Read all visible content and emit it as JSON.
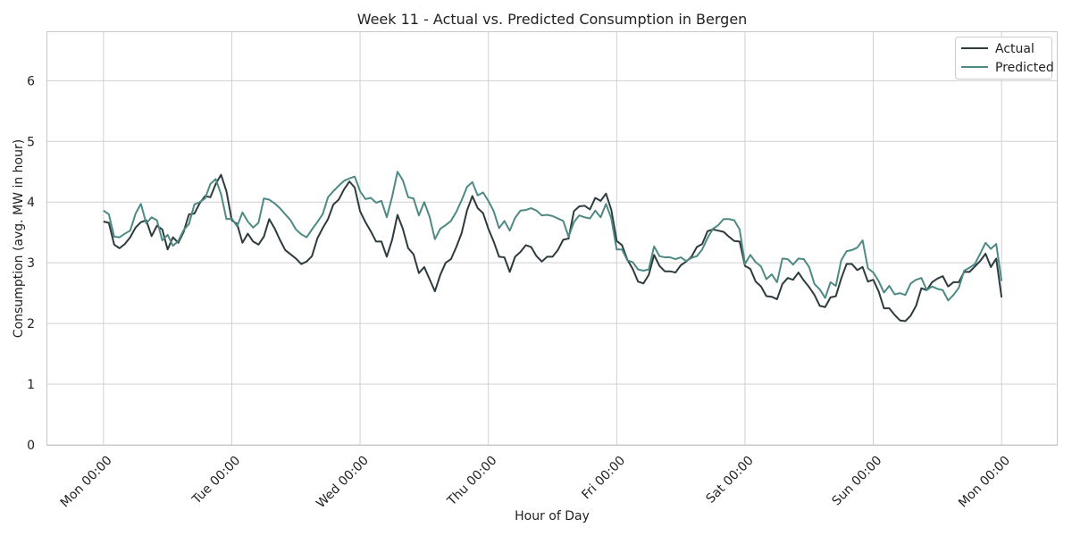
{
  "chart_data": {
    "type": "line",
    "title": "Week 11 - Actual vs. Predicted Consumption in Bergen",
    "xlabel": "Hour of Day",
    "ylabel": "Consumption (avg. MW in hour)",
    "x_unit": "hour",
    "xlim": [
      -10.5,
      178.5
    ],
    "ylim": [
      0,
      6.8
    ],
    "x_ticks": [
      {
        "value": 0,
        "label": "Mon 00:00"
      },
      {
        "value": 24,
        "label": "Tue 00:00"
      },
      {
        "value": 48,
        "label": "Wed 00:00"
      },
      {
        "value": 72,
        "label": "Thu 00:00"
      },
      {
        "value": 96,
        "label": "Fri 00:00"
      },
      {
        "value": 120,
        "label": "Sat 00:00"
      },
      {
        "value": 144,
        "label": "Sun 00:00"
      },
      {
        "value": 168,
        "label": "Mon 00:00"
      }
    ],
    "y_ticks": [
      0,
      1,
      2,
      3,
      4,
      5,
      6
    ],
    "grid": true,
    "legend_position": "top-right",
    "series": [
      {
        "name": "Actual",
        "color": "#2e3b3e",
        "values": [
          3.68,
          3.66,
          3.3,
          3.24,
          3.31,
          3.42,
          3.58,
          3.67,
          3.7,
          3.44,
          3.61,
          3.55,
          3.22,
          3.42,
          3.33,
          3.51,
          3.8,
          3.81,
          3.98,
          4.1,
          4.08,
          4.3,
          4.45,
          4.18,
          3.7,
          3.64,
          3.33,
          3.48,
          3.35,
          3.3,
          3.43,
          3.72,
          3.57,
          3.38,
          3.21,
          3.14,
          3.07,
          2.98,
          3.02,
          3.11,
          3.4,
          3.57,
          3.72,
          3.96,
          4.04,
          4.21,
          4.34,
          4.24,
          3.85,
          3.67,
          3.52,
          3.35,
          3.35,
          3.1,
          3.38,
          3.79,
          3.56,
          3.24,
          3.14,
          2.83,
          2.93,
          2.73,
          2.53,
          2.8,
          3.0,
          3.06,
          3.26,
          3.49,
          3.86,
          4.1,
          3.9,
          3.82,
          3.56,
          3.35,
          3.1,
          3.09,
          2.85,
          3.1,
          3.18,
          3.29,
          3.26,
          3.11,
          3.02,
          3.1,
          3.1,
          3.21,
          3.38,
          3.4,
          3.85,
          3.93,
          3.94,
          3.88,
          4.07,
          4.02,
          4.14,
          3.87,
          3.36,
          3.29,
          3.05,
          2.9,
          2.69,
          2.66,
          2.8,
          3.13,
          2.95,
          2.86,
          2.86,
          2.84,
          2.96,
          3.02,
          3.1,
          3.26,
          3.31,
          3.52,
          3.55,
          3.53,
          3.51,
          3.43,
          3.36,
          3.35,
          2.95,
          2.9,
          2.69,
          2.61,
          2.45,
          2.44,
          2.4,
          2.65,
          2.75,
          2.72,
          2.84,
          2.71,
          2.6,
          2.47,
          2.29,
          2.27,
          2.43,
          2.45,
          2.74,
          2.98,
          2.98,
          2.88,
          2.93,
          2.69,
          2.72,
          2.53,
          2.25,
          2.25,
          2.14,
          2.05,
          2.04,
          2.13,
          2.29,
          2.58,
          2.55,
          2.68,
          2.74,
          2.78,
          2.61,
          2.68,
          2.68,
          2.85,
          2.85,
          2.94,
          3.03,
          3.15,
          2.93,
          3.07,
          2.43
        ]
      },
      {
        "name": "Predicted",
        "color": "#4e8a84",
        "values": [
          3.86,
          3.8,
          3.43,
          3.42,
          3.48,
          3.53,
          3.81,
          3.97,
          3.65,
          3.75,
          3.7,
          3.37,
          3.46,
          3.28,
          3.36,
          3.54,
          3.64,
          3.96,
          4.0,
          4.06,
          4.3,
          4.38,
          4.13,
          3.72,
          3.73,
          3.6,
          3.83,
          3.68,
          3.58,
          3.66,
          4.06,
          4.04,
          3.98,
          3.9,
          3.8,
          3.7,
          3.55,
          3.47,
          3.42,
          3.55,
          3.67,
          3.8,
          4.08,
          4.18,
          4.27,
          4.35,
          4.39,
          4.42,
          4.18,
          4.05,
          4.07,
          3.99,
          4.02,
          3.75,
          4.09,
          4.5,
          4.36,
          4.08,
          4.06,
          3.78,
          4.0,
          3.76,
          3.39,
          3.56,
          3.62,
          3.69,
          3.84,
          4.03,
          4.25,
          4.33,
          4.11,
          4.16,
          4.02,
          3.85,
          3.57,
          3.69,
          3.53,
          3.74,
          3.86,
          3.87,
          3.9,
          3.86,
          3.78,
          3.79,
          3.77,
          3.73,
          3.69,
          3.43,
          3.67,
          3.78,
          3.75,
          3.73,
          3.86,
          3.75,
          3.97,
          3.73,
          3.22,
          3.22,
          3.04,
          3.01,
          2.89,
          2.87,
          2.89,
          3.27,
          3.11,
          3.09,
          3.09,
          3.06,
          3.09,
          3.03,
          3.08,
          3.11,
          3.22,
          3.41,
          3.56,
          3.62,
          3.72,
          3.72,
          3.7,
          3.55,
          2.98,
          3.13,
          3.01,
          2.94,
          2.73,
          2.81,
          2.68,
          3.07,
          3.06,
          2.97,
          3.07,
          3.06,
          2.93,
          2.65,
          2.56,
          2.42,
          2.68,
          2.62,
          3.04,
          3.19,
          3.21,
          3.25,
          3.37,
          2.91,
          2.84,
          2.7,
          2.51,
          2.62,
          2.48,
          2.5,
          2.47,
          2.66,
          2.72,
          2.75,
          2.55,
          2.61,
          2.57,
          2.55,
          2.38,
          2.47,
          2.59,
          2.87,
          2.92,
          2.98,
          3.15,
          3.33,
          3.23,
          3.31,
          2.7
        ]
      }
    ]
  }
}
